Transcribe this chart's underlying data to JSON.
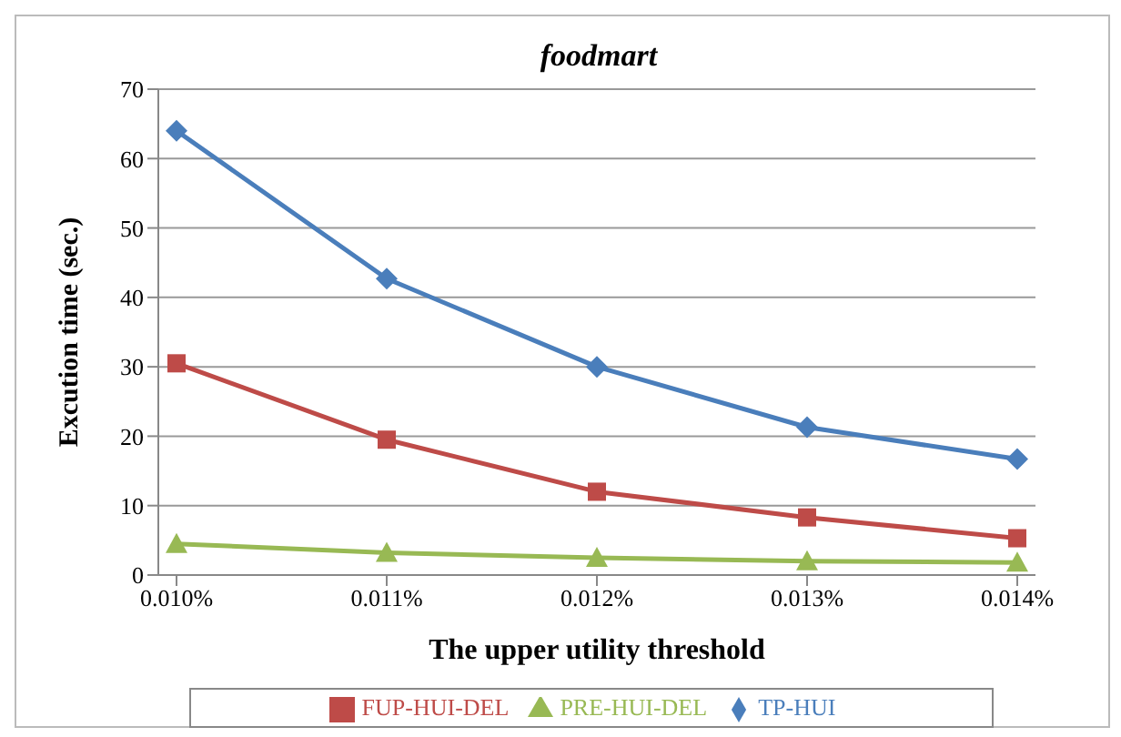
{
  "chart_data": {
    "type": "line",
    "title": "foodmart",
    "xlabel": "The upper utility threshold",
    "ylabel": "Excution time (sec.)",
    "categories": [
      "0.010%",
      "0.011%",
      "0.012%",
      "0.013%",
      "0.014%"
    ],
    "ylim": [
      0,
      70
    ],
    "yticks": [
      0,
      10,
      20,
      30,
      40,
      50,
      60,
      70
    ],
    "grid": "y",
    "legend": "bottom",
    "series": [
      {
        "name": "TP-HUI",
        "color": "#4a7ebb",
        "marker": "diamond",
        "values": [
          64,
          42.7,
          30,
          21.3,
          16.7
        ]
      },
      {
        "name": "FUP-HUI-DEL",
        "color": "#be4b48",
        "marker": "square",
        "values": [
          30.5,
          19.5,
          12,
          8.3,
          5.3
        ]
      },
      {
        "name": "PRE-HUI-DEL",
        "color": "#98b954",
        "marker": "triangle",
        "values": [
          4.5,
          3.2,
          2.5,
          2,
          1.8
        ]
      }
    ]
  }
}
